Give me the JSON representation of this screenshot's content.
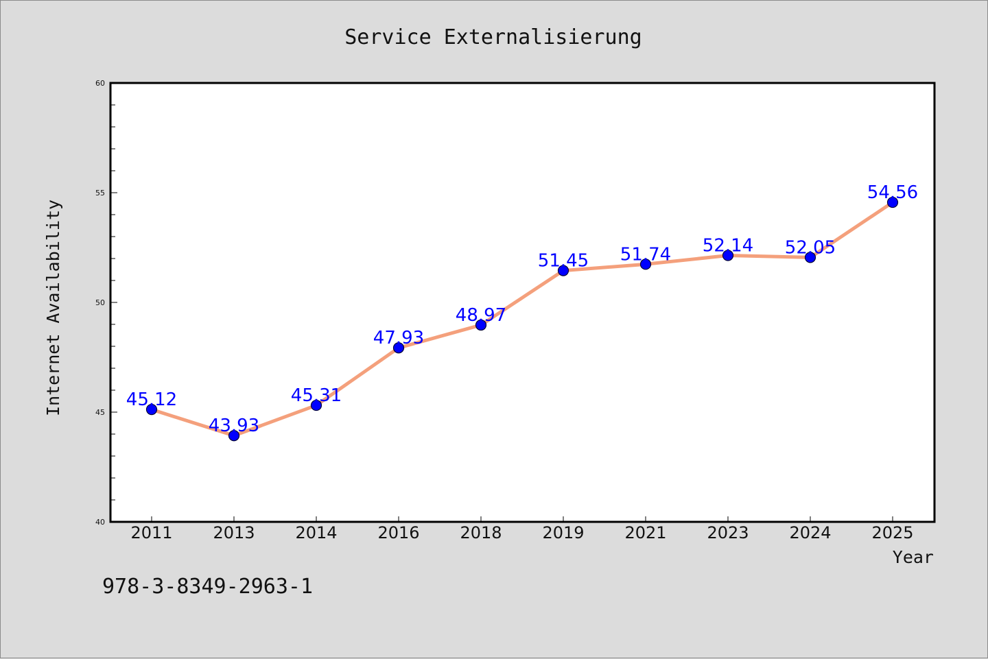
{
  "chart_data": {
    "type": "line",
    "title": "Service Externalisierung",
    "xlabel": "Year",
    "ylabel": "Internet Availability",
    "categories": [
      "2011",
      "2013",
      "2014",
      "2016",
      "2018",
      "2019",
      "2021",
      "2023",
      "2024",
      "2025"
    ],
    "values": [
      45.12,
      43.93,
      45.31,
      47.93,
      48.97,
      51.45,
      51.74,
      52.14,
      52.05,
      54.56
    ],
    "data_labels": [
      "45.12",
      "43.93",
      "45.31",
      "47.93",
      "48.97",
      "51.45",
      "51.74",
      "52.14",
      "52.05",
      "54.56"
    ],
    "ylim": [
      40,
      60
    ],
    "yticks": [
      "40",
      "45",
      "50",
      "55",
      "60"
    ],
    "grid": false,
    "line_color": "#f4a07c",
    "marker_color": "#0000ff",
    "label_color": "#0000ff"
  },
  "footer_text": "978-3-8349-2963-1"
}
